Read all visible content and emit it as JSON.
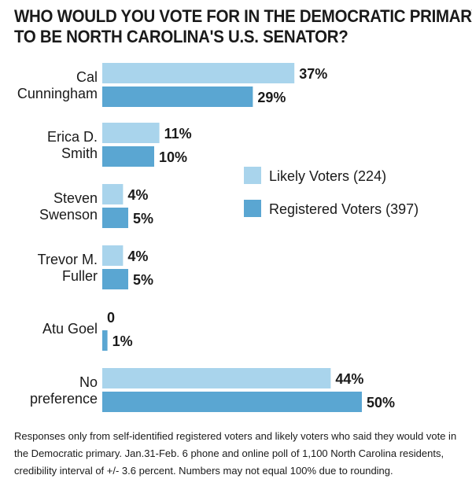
{
  "title_lines": [
    "WHO WOULD YOU VOTE FOR IN THE DEMOCRATIC PRIMARY",
    "TO BE NORTH CAROLINA'S U.S. SENATOR?"
  ],
  "footnote": "Responses only from self-identified registered voters and likely voters who said they would vote in the Democratic primary. Jan.31-Feb. 6 phone and online poll of 1,100 North Carolina residents, credibility interval of +/- 3.6 percent. Numbers may not equal 100% due to rounding.",
  "colors": {
    "likely": "#a9d4ec",
    "registered": "#5aa6d2"
  },
  "chart_data": {
    "type": "bar",
    "orientation": "horizontal",
    "categories": [
      {
        "lines": [
          "Cal",
          "Cunningham"
        ]
      },
      {
        "lines": [
          "Erica D.",
          "Smith"
        ]
      },
      {
        "lines": [
          "Steven",
          "Swenson"
        ]
      },
      {
        "lines": [
          "Trevor M.",
          "Fuller"
        ]
      },
      {
        "lines": [
          "Atu Goel"
        ]
      },
      {
        "lines": [
          "No",
          "preference"
        ]
      }
    ],
    "series": [
      {
        "name": "Likely Voters (224)",
        "values": [
          37,
          11,
          4,
          4,
          0,
          44
        ],
        "labels": [
          "37%",
          "11%",
          "4%",
          "4%",
          "0",
          "44%"
        ]
      },
      {
        "name": "Registered Voters (397)",
        "values": [
          29,
          10,
          5,
          5,
          1,
          50
        ],
        "labels": [
          "29%",
          "10%",
          "5%",
          "5%",
          "1%",
          "50%"
        ]
      }
    ],
    "legend_position": "right",
    "xlim": [
      0,
      50
    ]
  }
}
